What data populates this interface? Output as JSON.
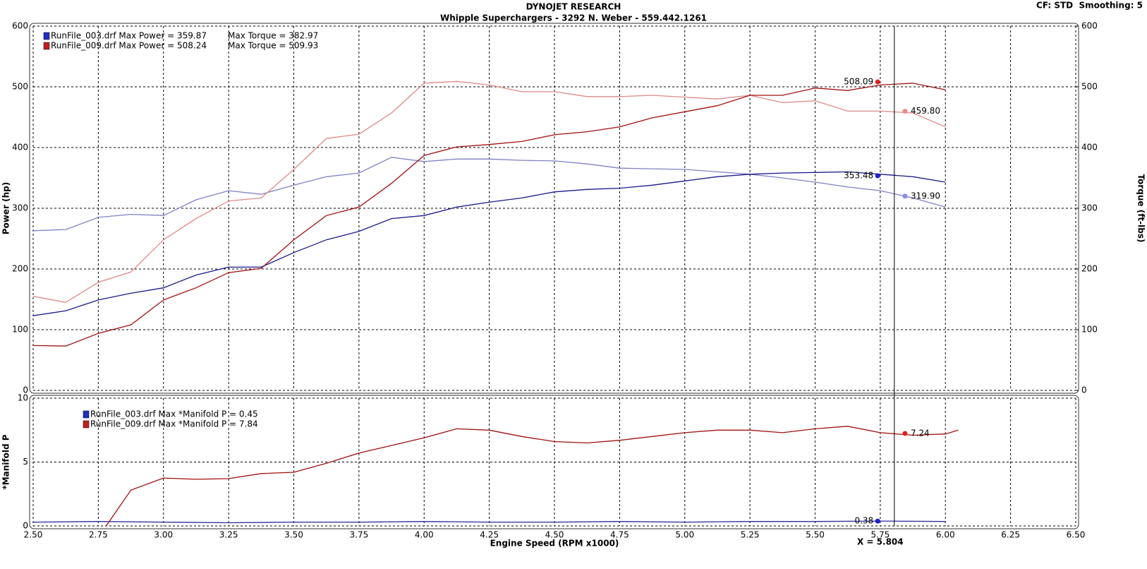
{
  "header": {
    "title": "DYNOJET RESEARCH",
    "subtitle": "Whipple Superchargers - 3292 N. Weber - 559.442.1261",
    "settings": "CF: STD  Smoothing: 5"
  },
  "chart_data": [
    {
      "type": "line",
      "ylabel": "Power (hp)",
      "y2label": "Torque (ft-lbs)",
      "ylim": [
        0,
        600
      ],
      "yticks": [
        0,
        100,
        200,
        300,
        400,
        500,
        600
      ],
      "y2lim": [
        0,
        600
      ],
      "y2ticks": [
        0,
        100,
        200,
        300,
        400,
        500,
        600
      ],
      "grid": true,
      "x": [
        2.5,
        2.625,
        2.75,
        2.875,
        3.0,
        3.125,
        3.25,
        3.375,
        3.5,
        3.625,
        3.75,
        3.875,
        4.0,
        4.125,
        4.25,
        4.375,
        4.5,
        4.625,
        4.75,
        4.875,
        5.0,
        5.125,
        5.25,
        5.375,
        5.5,
        5.625,
        5.75,
        5.875,
        6.0
      ],
      "legend": [
        {
          "text": "RunFile_003.drf Max Power = 359.87",
          "extra": "Max Torque = 382.97",
          "color": "#2030c0"
        },
        {
          "text": "RunFile_009.drf Max Power = 508.24",
          "extra": "Max Torque = 509.93",
          "color": "#c02020"
        }
      ],
      "series": [
        {
          "color": "#8080c8",
          "axis": "y2",
          "values": [
            263,
            265,
            285,
            290,
            288,
            314,
            329,
            323,
            338,
            352,
            358,
            384,
            377,
            381,
            381,
            379,
            378,
            373,
            366,
            365,
            364,
            360,
            356,
            350,
            343,
            335,
            329,
            317,
            302
          ]
        },
        {
          "color": "#e08888",
          "axis": "y2",
          "values": [
            155,
            145,
            178,
            195,
            248,
            283,
            312,
            317,
            364,
            415,
            422,
            457,
            506,
            509,
            503,
            492,
            492,
            484,
            484,
            486,
            483,
            480,
            486,
            474,
            477,
            460,
            460,
            457,
            434
          ]
        },
        {
          "color": "#1a1a8c",
          "values": [
            123,
            131,
            149,
            160,
            169,
            190,
            203,
            203,
            227,
            248,
            262,
            283,
            288,
            302,
            310,
            317,
            327,
            331,
            333,
            338,
            345,
            352,
            356,
            358,
            359,
            360,
            356,
            352,
            343
          ]
        },
        {
          "color": "#a01010",
          "values": [
            74,
            73,
            94,
            108,
            149,
            169,
            194,
            201,
            248,
            288,
            302,
            341,
            387,
            401,
            405,
            410,
            421,
            426,
            434,
            449,
            459,
            469,
            486,
            486,
            498,
            494,
            503,
            506,
            495
          ]
        }
      ],
      "markers": [
        {
          "x": 5.74,
          "y": 508.09,
          "label": "508.09",
          "color": "#e02020",
          "side": "left"
        },
        {
          "x": 5.845,
          "y": 459.8,
          "label": "459.80",
          "color": "#f08888",
          "side": "right",
          "axis": "y2"
        },
        {
          "x": 5.74,
          "y": 353.48,
          "label": "353.48",
          "color": "#2020d0",
          "side": "left"
        },
        {
          "x": 5.845,
          "y": 319.9,
          "label": "319.90",
          "color": "#8888e8",
          "side": "right",
          "axis": "y2"
        }
      ]
    },
    {
      "type": "line",
      "ylabel": "*Manifold P",
      "xlabel": "Engine Speed (RPM x1000)",
      "xlim": [
        2.5,
        6.5
      ],
      "xticks": [
        {
          "value": 2.5,
          "label": "2.50"
        },
        {
          "value": 2.75,
          "label": "2.75"
        },
        {
          "value": 3.0,
          "label": "3.00"
        },
        {
          "value": 3.25,
          "label": "3.25"
        },
        {
          "value": 3.5,
          "label": "3.50"
        },
        {
          "value": 3.75,
          "label": "3.75"
        },
        {
          "value": 4.0,
          "label": "4.00"
        },
        {
          "value": 4.25,
          "label": "4.25"
        },
        {
          "value": 4.5,
          "label": "4.50"
        },
        {
          "value": 4.75,
          "label": "4.75"
        },
        {
          "value": 5.0,
          "label": "5.00"
        },
        {
          "value": 5.25,
          "label": "5.25"
        },
        {
          "value": 5.5,
          "label": "5.50"
        },
        {
          "value": 5.75,
          "label": "5.75"
        },
        {
          "value": 6.0,
          "label": "6.00"
        },
        {
          "value": 6.25,
          "label": "6.25"
        },
        {
          "value": 6.5,
          "label": "6.50"
        }
      ],
      "ylim": [
        0,
        10
      ],
      "yticks": [
        0,
        5,
        10
      ],
      "grid": true,
      "cursor": {
        "x": 5.804,
        "label": "X = 5.804"
      },
      "legend": [
        {
          "text": "RunFile_003.drf Max *Manifold P = 0.45",
          "color": "#2030c0"
        },
        {
          "text": "RunFile_009.drf Max *Manifold P = 7.84",
          "color": "#c02020"
        }
      ],
      "series": [
        {
          "color": "#2a2a9a",
          "x": [
            2.5,
            2.75,
            3.0,
            3.25,
            3.5,
            3.75,
            4.0,
            4.25,
            4.5,
            4.75,
            5.0,
            5.25,
            5.5,
            5.75,
            6.0
          ],
          "values": [
            0.3,
            0.35,
            0.3,
            0.25,
            0.3,
            0.3,
            0.35,
            0.3,
            0.3,
            0.35,
            0.3,
            0.35,
            0.35,
            0.38,
            0.35
          ]
        },
        {
          "color": "#a01010",
          "x": [
            2.78,
            2.875,
            3.0,
            3.125,
            3.25,
            3.375,
            3.5,
            3.625,
            3.75,
            3.875,
            4.0,
            4.125,
            4.25,
            4.375,
            4.5,
            4.625,
            4.75,
            4.875,
            5.0,
            5.125,
            5.25,
            5.375,
            5.5,
            5.625,
            5.75,
            5.875,
            6.0,
            6.05
          ],
          "values": [
            0,
            2.8,
            3.75,
            3.65,
            3.7,
            4.1,
            4.2,
            4.9,
            5.7,
            6.3,
            6.9,
            7.6,
            7.5,
            7.0,
            6.6,
            6.5,
            6.7,
            7.0,
            7.3,
            7.5,
            7.5,
            7.3,
            7.6,
            7.8,
            7.3,
            7.1,
            7.2,
            7.5
          ]
        }
      ],
      "markers": [
        {
          "x": 5.845,
          "y": 7.24,
          "label": "7.24",
          "color": "#e02020",
          "side": "right"
        },
        {
          "x": 5.74,
          "y": 0.38,
          "label": "0.38",
          "color": "#2020d0",
          "side": "left"
        }
      ]
    }
  ]
}
